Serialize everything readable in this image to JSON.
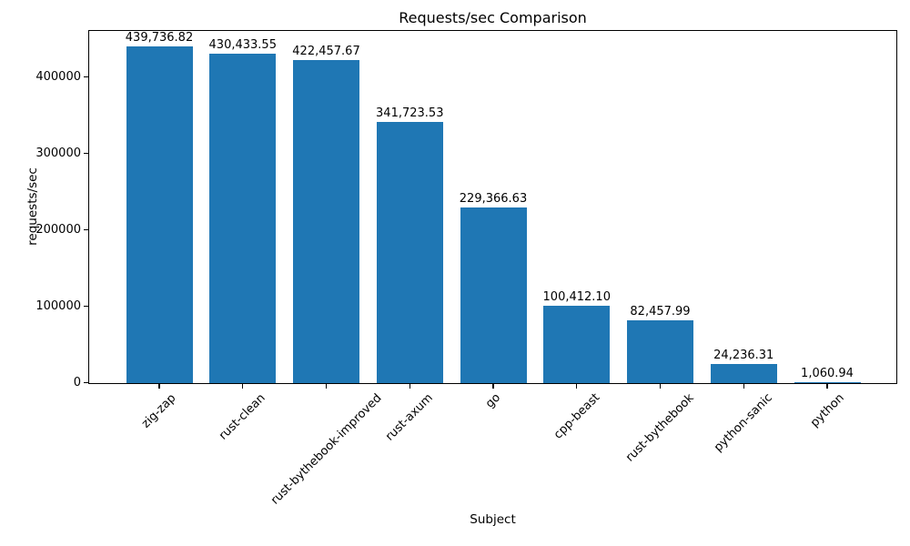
{
  "chart_data": {
    "type": "bar",
    "title": "Requests/sec Comparison",
    "xlabel": "Subject",
    "ylabel": "requests/sec",
    "categories": [
      "zig-zap",
      "rust-clean",
      "rust-bythebook-improved",
      "rust-axum",
      "go",
      "cpp-beast",
      "rust-bythebook",
      "python-sanic",
      "python"
    ],
    "values": [
      439736.82,
      430433.55,
      422457.67,
      341723.53,
      229366.63,
      100412.1,
      82457.99,
      24236.31,
      1060.94
    ],
    "value_labels": [
      "439,736.82",
      "430,433.55",
      "422,457.67",
      "341,723.53",
      "229,366.63",
      "100,412.10",
      "82,457.99",
      "24,236.31",
      "1,060.94"
    ],
    "yticks": [
      0,
      100000,
      200000,
      300000,
      400000
    ],
    "ytick_labels": [
      "0",
      "100000",
      "200000",
      "300000",
      "400000"
    ],
    "ylim": [
      0,
      461724
    ],
    "xtick_rotation_deg": 45,
    "grid": false,
    "legend": null,
    "bar_color": "#1f77b4",
    "bar_width_frac": 0.8,
    "text_color": "#000000",
    "background_color": "#ffffff"
  }
}
